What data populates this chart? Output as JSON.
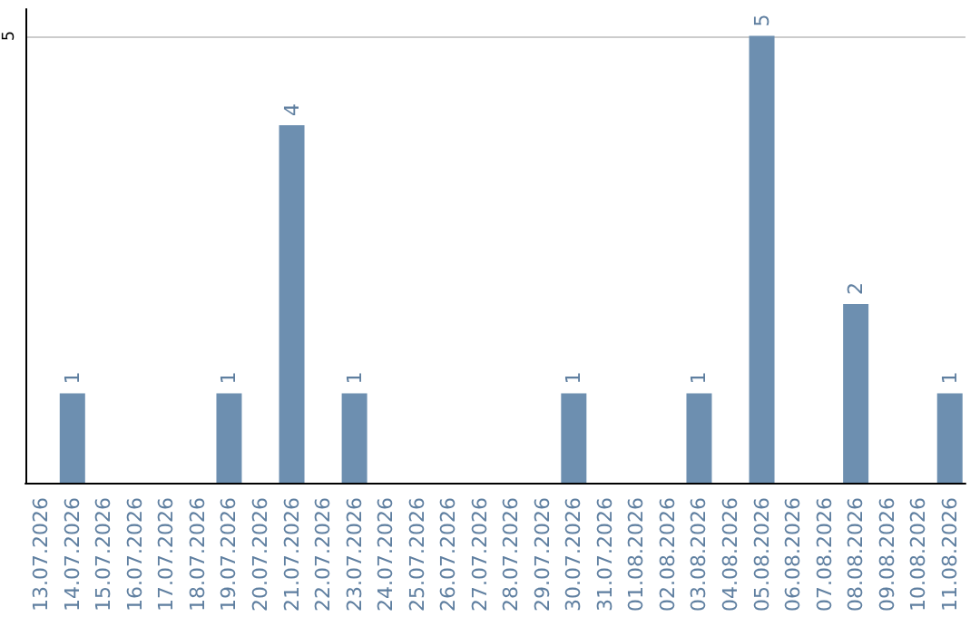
{
  "chart_data": {
    "type": "bar",
    "categories": [
      "13.07.2026",
      "14.07.2026",
      "15.07.2026",
      "16.07.2026",
      "17.07.2026",
      "18.07.2026",
      "19.07.2026",
      "20.07.2026",
      "21.07.2026",
      "22.07.2026",
      "23.07.2026",
      "24.07.2026",
      "25.07.2026",
      "26.07.2026",
      "27.07.2026",
      "28.07.2026",
      "29.07.2026",
      "30.07.2026",
      "31.07.2026",
      "01.08.2026",
      "02.08.2026",
      "03.08.2026",
      "04.08.2026",
      "05.08.2026",
      "06.08.2026",
      "07.08.2026",
      "08.08.2026",
      "09.08.2026",
      "10.08.2026",
      "11.08.2026"
    ],
    "values": [
      0,
      1,
      0,
      0,
      0,
      0,
      1,
      0,
      4,
      0,
      1,
      0,
      0,
      0,
      0,
      0,
      0,
      1,
      0,
      0,
      0,
      1,
      0,
      5,
      0,
      0,
      2,
      0,
      0,
      1
    ],
    "value_labels": [
      null,
      "1",
      null,
      null,
      null,
      null,
      "1",
      null,
      "4",
      null,
      "1",
      null,
      null,
      null,
      null,
      null,
      null,
      "1",
      null,
      null,
      null,
      "1",
      null,
      "5",
      null,
      null,
      "2",
      null,
      null,
      "1"
    ],
    "color": "#6d8fb0",
    "ylim": [
      0,
      5.3
    ],
    "yticks": [
      5
    ],
    "grid": "y"
  }
}
